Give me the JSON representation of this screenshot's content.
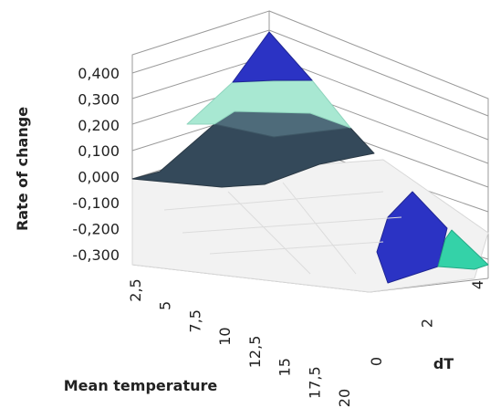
{
  "chart_data": {
    "type": "surface",
    "title": "",
    "zlabel": "Rate of change",
    "xlabel": "Mean temperature",
    "ylabel": "dT",
    "z_ticks": [
      "0,400",
      "0,300",
      "0,200",
      "0,100",
      "0,000",
      "-0,100",
      "-0,200",
      "-0,300"
    ],
    "x_ticks": [
      "2,5",
      "5",
      "7,5",
      "10",
      "12,5",
      "15",
      "17,5",
      "20"
    ],
    "y_ticks": [
      "0",
      "2",
      "4"
    ],
    "zlim": [
      -0.3,
      0.4
    ],
    "xlim": [
      2.5,
      20
    ],
    "ylim": [
      0,
      4
    ],
    "peak": {
      "x": 2.5,
      "y": 4,
      "z": 0.4
    },
    "bands": [
      {
        "range": [
          0.3,
          0.4
        ],
        "color": "#2b33c4"
      },
      {
        "range": [
          0.2,
          0.3
        ],
        "color": "#a8e8d2"
      },
      {
        "range": [
          0.1,
          0.2
        ],
        "color": "#7fb2ac"
      },
      {
        "range": [
          0.0,
          0.1
        ],
        "color": "#34495a"
      },
      {
        "range": [
          -0.1,
          0.0
        ],
        "color": "#f2f2f2"
      },
      {
        "range": [
          -0.2,
          -0.1
        ],
        "color": "#2b33c4"
      },
      {
        "range": [
          -0.3,
          -0.2
        ],
        "color": "#34d2a8"
      }
    ],
    "wall_color": "#9a9a9a",
    "grid": true
  }
}
